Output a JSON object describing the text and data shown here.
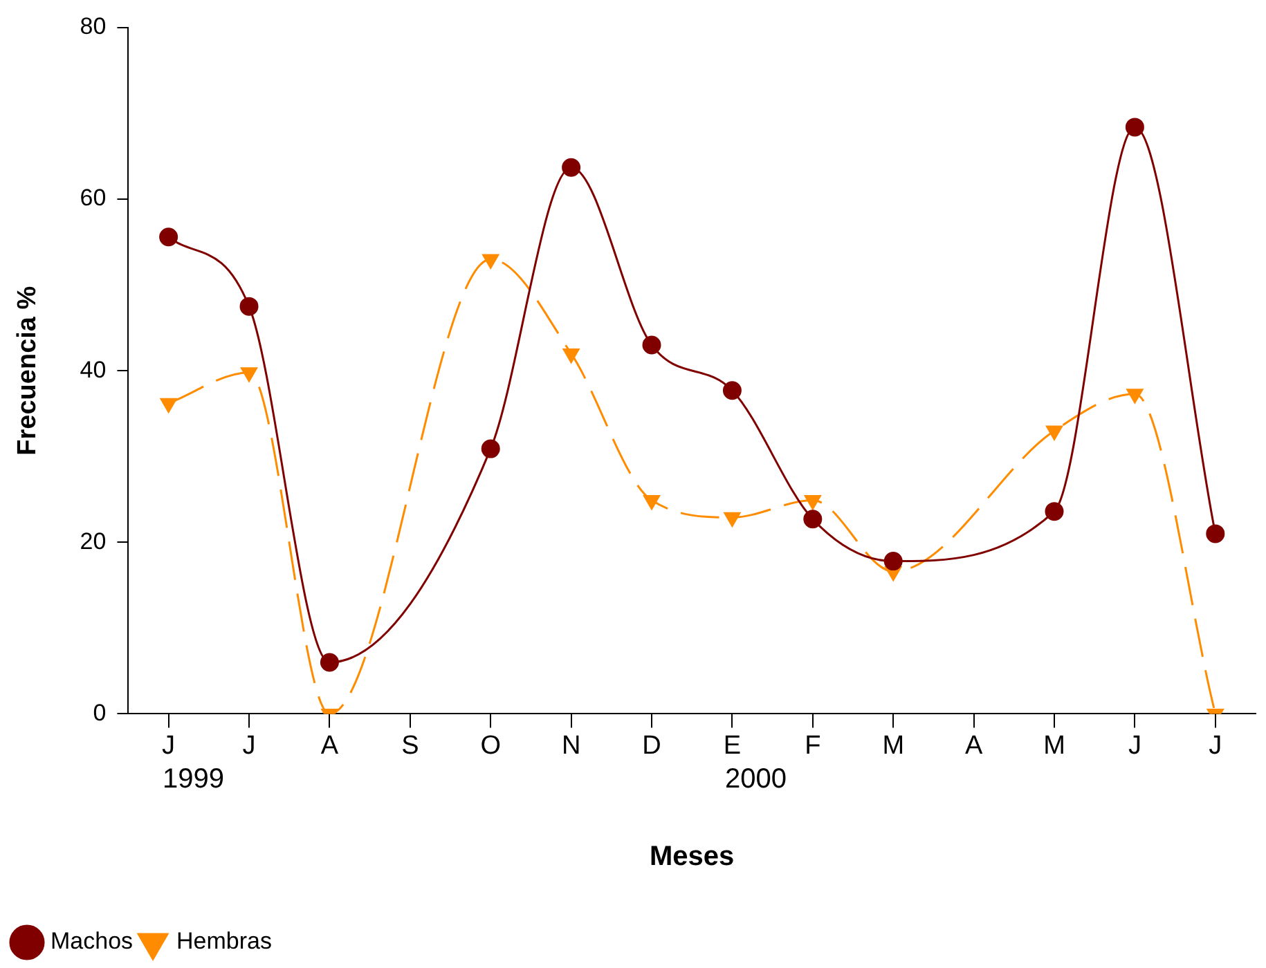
{
  "chart_data": {
    "type": "line",
    "xlabel": "Meses",
    "ylabel": "Frecuencia %",
    "categories": [
      "J",
      "J",
      "A",
      "S",
      "O",
      "N",
      "D",
      "E",
      "F",
      "M",
      "A",
      "M",
      "J",
      "J"
    ],
    "series": [
      {
        "name": "Machos",
        "color": "#800000",
        "marker": "circle",
        "line_style": "solid",
        "values": [
          55.6,
          47.5,
          6,
          null,
          30.9,
          63.7,
          43,
          37.7,
          22.7,
          17.8,
          null,
          23.6,
          68.4,
          21
        ]
      },
      {
        "name": "Hembras",
        "color": "#ff8c00",
        "marker": "triangle",
        "line_style": "dashed",
        "values": [
          36.2,
          39.8,
          0,
          null,
          53,
          42,
          24.9,
          22.9,
          24.9,
          16.6,
          null,
          33,
          37.3,
          0
        ]
      }
    ],
    "ylim": [
      0,
      80
    ],
    "yticks": [
      0,
      20,
      40,
      60,
      80
    ],
    "grid": false,
    "legend": "bottom left",
    "annotations": [
      "1999",
      "2000"
    ]
  }
}
